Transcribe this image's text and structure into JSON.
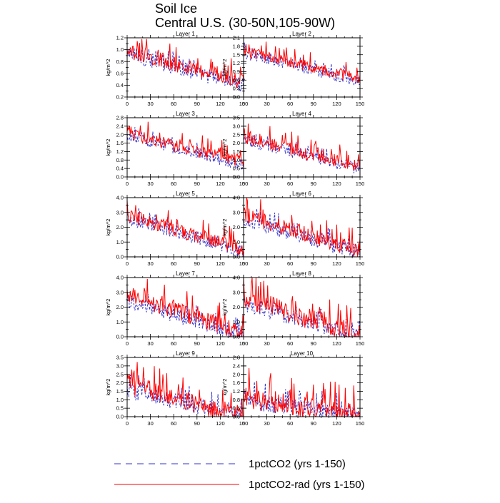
{
  "title": [
    "Soil Ice",
    "Central U.S. (30-50N,105-90W)"
  ],
  "legend": [
    {
      "label": "1pctCO2 (yrs 1-150)",
      "color": "#3333cc",
      "dash": "dashed"
    },
    {
      "label": "1pctCO2-rad (yrs 1-150)",
      "color": "#ff0000",
      "dash": "solid"
    }
  ],
  "chart_data": [
    {
      "type": "line",
      "title": "Layer 1",
      "ylabel": "kg/m^2",
      "xlim": [
        0,
        150
      ],
      "ylim": [
        0.2,
        1.2
      ],
      "yticks": [
        "0.2",
        "0.3",
        "0.4",
        "0.5",
        "0.6",
        "0.7",
        "0.8",
        "0.9",
        "1.0",
        "1.1",
        "1.2"
      ],
      "ytick_labels": [
        "0.2",
        "0.4",
        "0.6",
        "0.8",
        "1.0",
        "1.2"
      ],
      "xticks": [
        "0",
        "30",
        "60",
        "90",
        "120",
        "150"
      ],
      "series": [
        {
          "key": "a",
          "color": "#3333cc",
          "start": 0.92,
          "end": 0.4,
          "noise": 0.13
        },
        {
          "key": "b",
          "color": "#ff0000",
          "start": 0.97,
          "end": 0.45,
          "noise": 0.13
        }
      ]
    },
    {
      "type": "line",
      "title": "Layer 2",
      "ylabel": "kg/m^2",
      "xlim": [
        0,
        150
      ],
      "ylim": [
        0.0,
        2.1
      ],
      "yticks": [
        "0.0",
        "0.3",
        "0.6",
        "0.9",
        "1.2",
        "1.5",
        "1.8",
        "2.1"
      ],
      "ytick_labels": [
        "0.0",
        "0.3",
        "0.6",
        "0.9",
        "1.2",
        "1.5",
        "1.8",
        "2.1"
      ],
      "xticks": [
        "0",
        "30",
        "60",
        "90",
        "120",
        "150"
      ],
      "series": [
        {
          "key": "a",
          "color": "#3333cc",
          "start": 1.55,
          "end": 0.55,
          "noise": 0.2
        },
        {
          "key": "b",
          "color": "#ff0000",
          "start": 1.62,
          "end": 0.65,
          "noise": 0.2
        }
      ]
    },
    {
      "type": "line",
      "title": "Layer 3",
      "ylabel": "kg/m^2",
      "xlim": [
        0,
        150
      ],
      "ylim": [
        0.0,
        2.8
      ],
      "yticks": [
        "0.0",
        "0.4",
        "0.8",
        "1.2",
        "1.6",
        "2.0",
        "2.4",
        "2.8"
      ],
      "ytick_labels": [
        "0.0",
        "0.4",
        "0.8",
        "1.2",
        "1.6",
        "2.0",
        "2.4",
        "2.8"
      ],
      "xticks": [
        "0",
        "30",
        "60",
        "90",
        "120",
        "150"
      ],
      "series": [
        {
          "key": "a",
          "color": "#3333cc",
          "start": 1.95,
          "end": 0.55,
          "noise": 0.28
        },
        {
          "key": "b",
          "color": "#ff0000",
          "start": 2.05,
          "end": 0.7,
          "noise": 0.3
        }
      ]
    },
    {
      "type": "line",
      "title": "Layer 4",
      "ylabel": "kg/m^2",
      "xlim": [
        0,
        150
      ],
      "ylim": [
        0.0,
        3.5
      ],
      "yticks": [
        "0.0",
        "0.5",
        "1.0",
        "1.5",
        "2.0",
        "2.5",
        "3.0",
        "3.5"
      ],
      "ytick_labels": [
        "0.0",
        "0.5",
        "1.0",
        "1.5",
        "2.0",
        "2.5",
        "3.0",
        "3.5"
      ],
      "xticks": [
        "0",
        "30",
        "60",
        "90",
        "120",
        "150"
      ],
      "series": [
        {
          "key": "a",
          "color": "#3333cc",
          "start": 2.2,
          "end": 0.45,
          "noise": 0.35
        },
        {
          "key": "b",
          "color": "#ff0000",
          "start": 2.35,
          "end": 0.6,
          "noise": 0.4
        }
      ]
    },
    {
      "type": "line",
      "title": "Layer 5",
      "ylabel": "kg/m^2",
      "xlim": [
        0,
        150
      ],
      "ylim": [
        0.0,
        4.0
      ],
      "yticks": [
        "0.0",
        "0.5",
        "1.0",
        "1.5",
        "2.0",
        "2.5",
        "3.0",
        "3.5",
        "4.0"
      ],
      "ytick_labels": [
        "0.0",
        "1.0",
        "2.0",
        "3.0",
        "4.0"
      ],
      "xticks": [
        "0",
        "30",
        "60",
        "90",
        "120",
        "150"
      ],
      "series": [
        {
          "key": "a",
          "color": "#3333cc",
          "start": 2.6,
          "end": 0.35,
          "noise": 0.45
        },
        {
          "key": "b",
          "color": "#ff0000",
          "start": 2.8,
          "end": 0.5,
          "noise": 0.5
        }
      ]
    },
    {
      "type": "line",
      "title": "Layer 6",
      "ylabel": "kg/m^2",
      "xlim": [
        0,
        150
      ],
      "ylim": [
        0.0,
        4.0
      ],
      "yticks": [
        "0.0",
        "0.5",
        "1.0",
        "1.5",
        "2.0",
        "2.5",
        "3.0",
        "3.5",
        "4.0"
      ],
      "ytick_labels": [
        "0.0",
        "1.0",
        "2.0",
        "3.0",
        "4.0"
      ],
      "xticks": [
        "0",
        "30",
        "60",
        "90",
        "120",
        "150"
      ],
      "series": [
        {
          "key": "a",
          "color": "#3333cc",
          "start": 2.5,
          "end": 0.25,
          "noise": 0.5
        },
        {
          "key": "b",
          "color": "#ff0000",
          "start": 2.8,
          "end": 0.4,
          "noise": 0.55
        }
      ]
    },
    {
      "type": "line",
      "title": "Layer 7",
      "ylabel": "kg/m^2",
      "xlim": [
        0,
        150
      ],
      "ylim": [
        0.0,
        4.0
      ],
      "yticks": [
        "0.0",
        "0.5",
        "1.0",
        "1.5",
        "2.0",
        "2.5",
        "3.0",
        "3.5",
        "4.0"
      ],
      "ytick_labels": [
        "0.0",
        "1.0",
        "2.0",
        "3.0",
        "4.0"
      ],
      "xticks": [
        "0",
        "30",
        "60",
        "90",
        "120",
        "150"
      ],
      "series": [
        {
          "key": "a",
          "color": "#3333cc",
          "start": 2.4,
          "end": 0.05,
          "noise": 0.5
        },
        {
          "key": "b",
          "color": "#ff0000",
          "start": 2.9,
          "end": 0.2,
          "noise": 0.6
        }
      ]
    },
    {
      "type": "line",
      "title": "Layer 8",
      "ylabel": "kg/m^2",
      "xlim": [
        0,
        150
      ],
      "ylim": [
        0.0,
        4.0
      ],
      "yticks": [
        "0.0",
        "0.5",
        "1.0",
        "1.5",
        "2.0",
        "2.5",
        "3.0",
        "3.5",
        "4.0"
      ],
      "ytick_labels": [
        "0.0",
        "1.0",
        "2.0",
        "3.0",
        "4.0"
      ],
      "xticks": [
        "0",
        "30",
        "60",
        "90",
        "120",
        "150"
      ],
      "series": [
        {
          "key": "a",
          "color": "#3333cc",
          "start": 2.2,
          "end": 0.0,
          "noise": 0.5
        },
        {
          "key": "b",
          "color": "#ff0000",
          "start": 2.7,
          "end": 0.05,
          "noise": 0.7
        }
      ]
    },
    {
      "type": "line",
      "title": "Layer 9",
      "ylabel": "kg/m^2",
      "xlim": [
        0,
        150
      ],
      "ylim": [
        0.0,
        3.5
      ],
      "yticks": [
        "0.0",
        "0.5",
        "1.0",
        "1.5",
        "2.0",
        "2.5",
        "3.0",
        "3.5"
      ],
      "ytick_labels": [
        "0.0",
        "0.5",
        "1.0",
        "1.5",
        "2.0",
        "2.5",
        "3.0",
        "3.5"
      ],
      "xticks": [
        "0",
        "30",
        "60",
        "90",
        "120",
        "150"
      ],
      "series": [
        {
          "key": "a",
          "color": "#3333cc",
          "start": 1.6,
          "end": 0.0,
          "noise": 0.5
        },
        {
          "key": "b",
          "color": "#ff0000",
          "start": 1.9,
          "end": 0.0,
          "noise": 0.6
        }
      ]
    },
    {
      "type": "line",
      "title": "Layer 10",
      "ylabel": "kg/m^2",
      "xlim": [
        0,
        150
      ],
      "ylim": [
        0.0,
        2.8
      ],
      "yticks": [
        "0.0",
        "0.4",
        "0.8",
        "1.2",
        "1.6",
        "2.0",
        "2.4",
        "2.8"
      ],
      "ytick_labels": [
        "0.0",
        "0.4",
        "0.8",
        "1.2",
        "1.6",
        "2.0",
        "2.4",
        "2.8"
      ],
      "xticks": [
        "0",
        "30",
        "60",
        "90",
        "120",
        "150"
      ],
      "series": [
        {
          "key": "a",
          "color": "#3333cc",
          "start": 0.7,
          "end": 0.0,
          "noise": 0.45
        },
        {
          "key": "b",
          "color": "#ff0000",
          "start": 0.9,
          "end": 0.0,
          "noise": 0.55
        }
      ]
    }
  ]
}
